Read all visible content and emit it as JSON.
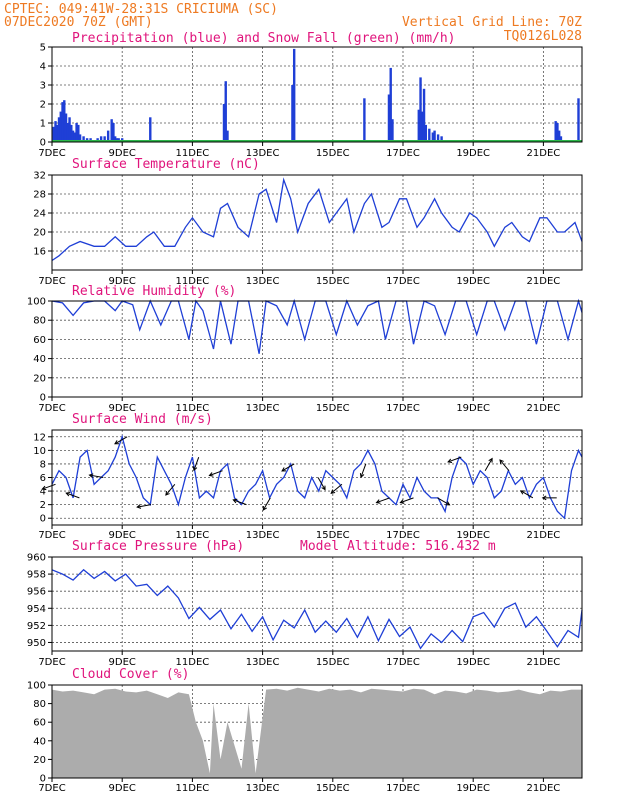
{
  "header": {
    "line1": "CPTEC:   049:41W-28:31S   CRICIUMA (SC)",
    "line2_left": "07DEC2020 70Z (GMT)",
    "line2_right": "Vertical Grid Line: 70Z",
    "line3_right": "TQ0126L028"
  },
  "colors": {
    "header": "#ee7a22",
    "title": "#e0147c",
    "line": "#1f3fd6",
    "snow": "#2cb84a",
    "cloud": "#acacac",
    "arrow": "#000000"
  },
  "chart_data": [
    {
      "type": "bar",
      "title": "Precipitation (blue) and Snow Fall (green) (mm/h)",
      "ylim": [
        0,
        5
      ],
      "yticks": [
        0,
        1,
        2,
        3,
        4,
        5
      ],
      "xticks": [
        "7DEC",
        "9DEC",
        "11DEC",
        "13DEC",
        "15DEC",
        "17DEC",
        "19DEC",
        "21DEC"
      ],
      "xlim_days": [
        7,
        22.1
      ],
      "series": [
        {
          "name": "Precipitation",
          "x": [
            7.05,
            7.1,
            7.15,
            7.2,
            7.25,
            7.3,
            7.35,
            7.4,
            7.45,
            7.5,
            7.55,
            7.6,
            7.65,
            7.7,
            7.75,
            7.8,
            7.9,
            8.0,
            8.1,
            8.2,
            8.3,
            8.4,
            8.5,
            8.6,
            8.7,
            8.75,
            8.8,
            8.85,
            8.9,
            9.0,
            9.8,
            11.9,
            11.95,
            12.0,
            13.85,
            13.9,
            15.9,
            16.6,
            16.65,
            16.7,
            17.45,
            17.5,
            17.55,
            17.6,
            17.65,
            17.75,
            17.85,
            17.9,
            18.0,
            18.1,
            21.35,
            21.4,
            21.45,
            21.5,
            22.0
          ],
          "values": [
            0.8,
            1.1,
            0.9,
            1.3,
            1.6,
            2.1,
            2.2,
            1.5,
            1.0,
            1.3,
            0.9,
            0.6,
            0.5,
            1.0,
            0.9,
            0.4,
            0.3,
            0.2,
            0.2,
            0.1,
            0.2,
            0.3,
            0.3,
            0.6,
            1.2,
            1.0,
            0.3,
            0.2,
            0.2,
            0.2,
            1.3,
            2.0,
            3.2,
            0.6,
            3.0,
            4.9,
            2.3,
            2.5,
            3.9,
            1.2,
            1.7,
            3.4,
            1.6,
            2.8,
            0.9,
            0.7,
            0.5,
            0.6,
            0.4,
            0.3,
            1.1,
            1.0,
            0.6,
            0.3,
            2.3
          ]
        },
        {
          "name": "Snow Fall",
          "x": [
            7.0,
            22.1
          ],
          "values": [
            0,
            0
          ]
        }
      ]
    },
    {
      "type": "line",
      "title": "Surface Temperature (nC)",
      "ylim": [
        12,
        32
      ],
      "yticks": [
        16,
        20,
        24,
        28,
        32
      ],
      "xticks": [
        "7DEC",
        "9DEC",
        "11DEC",
        "13DEC",
        "15DEC",
        "17DEC",
        "19DEC",
        "21DEC"
      ],
      "series": [
        {
          "name": "Temperature",
          "x": [
            7.0,
            7.2,
            7.5,
            7.8,
            8.2,
            8.5,
            8.8,
            9.1,
            9.4,
            9.7,
            9.9,
            10.2,
            10.5,
            10.8,
            11.0,
            11.3,
            11.6,
            11.8,
            12.0,
            12.3,
            12.6,
            12.9,
            13.1,
            13.4,
            13.6,
            13.8,
            14.0,
            14.3,
            14.6,
            14.9,
            15.1,
            15.4,
            15.6,
            15.9,
            16.1,
            16.4,
            16.6,
            16.9,
            17.1,
            17.4,
            17.6,
            17.9,
            18.1,
            18.4,
            18.6,
            18.9,
            19.1,
            19.4,
            19.6,
            19.9,
            20.1,
            20.4,
            20.6,
            20.9,
            21.1,
            21.4,
            21.6,
            21.9,
            22.1
          ],
          "values": [
            14,
            15,
            17,
            18,
            17,
            17,
            19,
            17,
            17,
            19,
            20,
            17,
            17,
            21,
            23,
            20,
            19,
            25,
            26,
            21,
            19,
            28,
            29,
            22,
            31,
            27,
            20,
            26,
            29,
            22,
            24,
            27,
            20,
            26,
            28,
            21,
            22,
            27,
            27,
            21,
            23,
            27,
            24,
            21,
            20,
            24,
            23,
            20,
            17,
            21,
            22,
            19,
            18,
            23,
            23,
            20,
            20,
            22,
            18
          ]
        }
      ]
    },
    {
      "type": "line",
      "title": "Relative Humidity (%)",
      "ylim": [
        0,
        100
      ],
      "yticks": [
        0,
        20,
        40,
        60,
        80,
        100
      ],
      "xticks": [
        "7DEC",
        "9DEC",
        "11DEC",
        "13DEC",
        "15DEC",
        "17DEC",
        "19DEC",
        "21DEC"
      ],
      "series": [
        {
          "name": "Relative Humidity",
          "x": [
            7.0,
            7.3,
            7.6,
            7.9,
            8.2,
            8.5,
            8.8,
            9.0,
            9.3,
            9.5,
            9.8,
            10.1,
            10.4,
            10.6,
            10.9,
            11.1,
            11.3,
            11.6,
            11.8,
            12.1,
            12.3,
            12.6,
            12.9,
            13.1,
            13.4,
            13.7,
            13.9,
            14.2,
            14.5,
            14.8,
            15.1,
            15.4,
            15.7,
            16.0,
            16.3,
            16.5,
            16.8,
            17.1,
            17.3,
            17.6,
            17.9,
            18.2,
            18.5,
            18.8,
            19.1,
            19.4,
            19.6,
            19.9,
            20.2,
            20.5,
            20.8,
            21.1,
            21.4,
            21.7,
            22.0,
            22.1
          ],
          "values": [
            100,
            98,
            85,
            98,
            100,
            100,
            90,
            100,
            96,
            70,
            100,
            75,
            100,
            100,
            60,
            100,
            90,
            50,
            100,
            55,
            100,
            100,
            45,
            100,
            95,
            75,
            100,
            60,
            100,
            100,
            65,
            100,
            75,
            95,
            100,
            60,
            100,
            100,
            55,
            100,
            95,
            65,
            100,
            100,
            65,
            100,
            100,
            70,
            100,
            100,
            55,
            100,
            100,
            60,
            100,
            88
          ]
        }
      ]
    },
    {
      "type": "line",
      "title": "Surface Wind (m/s)",
      "ylim": [
        -1,
        13
      ],
      "yticks": [
        0,
        2,
        4,
        6,
        8,
        10,
        12
      ],
      "xticks": [
        "7DEC",
        "9DEC",
        "11DEC",
        "13DEC",
        "15DEC",
        "17DEC",
        "19DEC",
        "21DEC"
      ],
      "series": [
        {
          "name": "Wind Speed",
          "x": [
            7.0,
            7.2,
            7.4,
            7.6,
            7.8,
            8.0,
            8.2,
            8.4,
            8.6,
            8.8,
            9.0,
            9.2,
            9.4,
            9.6,
            9.8,
            10.0,
            10.2,
            10.4,
            10.6,
            10.8,
            11.0,
            11.2,
            11.4,
            11.6,
            11.8,
            12.0,
            12.2,
            12.4,
            12.6,
            12.8,
            13.0,
            13.2,
            13.4,
            13.6,
            13.8,
            14.0,
            14.2,
            14.4,
            14.6,
            14.8,
            15.0,
            15.2,
            15.4,
            15.6,
            15.8,
            16.0,
            16.2,
            16.4,
            16.6,
            16.8,
            17.0,
            17.2,
            17.4,
            17.6,
            17.8,
            18.0,
            18.2,
            18.4,
            18.6,
            18.8,
            19.0,
            19.2,
            19.4,
            19.6,
            19.8,
            20.0,
            20.2,
            20.4,
            20.6,
            20.8,
            21.0,
            21.2,
            21.4,
            21.6,
            21.8,
            22.0,
            22.1
          ],
          "values": [
            5,
            7,
            6,
            3,
            9,
            10,
            5,
            6,
            7,
            9,
            12,
            8,
            6,
            3,
            2,
            9,
            7,
            5,
            2,
            6,
            9,
            3,
            4,
            3,
            7,
            8,
            3,
            2,
            4,
            5,
            7,
            3,
            5,
            6,
            8,
            4,
            3,
            6,
            4,
            7,
            6,
            5,
            3,
            7,
            8,
            10,
            8,
            4,
            3,
            2,
            5,
            3,
            6,
            4,
            3,
            3,
            1,
            6,
            9,
            8,
            5,
            7,
            6,
            3,
            4,
            7,
            5,
            6,
            3,
            5,
            6,
            3,
            1,
            0,
            7,
            10,
            9
          ]
        }
      ]
    },
    {
      "type": "line",
      "title": "Surface Pressure (hPa)",
      "annotation": "Model Altitude: 516.432 m",
      "ylim": [
        949,
        960
      ],
      "yticks": [
        950,
        952,
        954,
        956,
        958,
        960
      ],
      "xticks": [
        "7DEC",
        "9DEC",
        "11DEC",
        "13DEC",
        "15DEC",
        "17DEC",
        "19DEC",
        "21DEC"
      ],
      "series": [
        {
          "name": "Pressure",
          "x": [
            7.0,
            7.3,
            7.6,
            7.9,
            8.2,
            8.5,
            8.8,
            9.1,
            9.4,
            9.7,
            10.0,
            10.3,
            10.6,
            10.9,
            11.2,
            11.5,
            11.8,
            12.1,
            12.4,
            12.7,
            13.0,
            13.3,
            13.6,
            13.9,
            14.2,
            14.5,
            14.8,
            15.1,
            15.4,
            15.7,
            16.0,
            16.3,
            16.6,
            16.9,
            17.2,
            17.5,
            17.8,
            18.1,
            18.4,
            18.7,
            19.0,
            19.3,
            19.6,
            19.9,
            20.2,
            20.5,
            20.8,
            21.1,
            21.4,
            21.7,
            22.0,
            22.1
          ],
          "values": [
            958.5,
            958.0,
            957.3,
            958.5,
            957.5,
            958.3,
            957.2,
            958.0,
            956.6,
            956.8,
            955.5,
            956.6,
            955.2,
            952.8,
            954.1,
            952.7,
            953.8,
            951.6,
            953.3,
            951.3,
            953.0,
            950.3,
            952.6,
            951.7,
            953.8,
            951.2,
            952.5,
            951.2,
            952.8,
            950.6,
            953.0,
            950.2,
            952.7,
            950.7,
            951.8,
            949.3,
            951.0,
            950.0,
            951.4,
            950.1,
            953.0,
            953.5,
            951.8,
            954.0,
            954.6,
            951.8,
            953.0,
            951.3,
            949.5,
            951.4,
            950.6,
            953.8
          ]
        }
      ]
    },
    {
      "type": "area",
      "title": "Cloud Cover (%)",
      "ylim": [
        0,
        100
      ],
      "yticks": [
        0,
        20,
        40,
        60,
        80,
        100
      ],
      "xticks": [
        "7DEC",
        "9DEC",
        "11DEC",
        "13DEC",
        "15DEC",
        "17DEC",
        "19DEC",
        "21DEC"
      ],
      "series": [
        {
          "name": "Cloud Cover",
          "x": [
            7.0,
            7.3,
            7.6,
            7.9,
            8.2,
            8.5,
            8.8,
            9.1,
            9.4,
            9.7,
            10.0,
            10.3,
            10.6,
            10.9,
            11.1,
            11.3,
            11.5,
            11.6,
            11.8,
            12.0,
            12.2,
            12.4,
            12.6,
            12.8,
            13.1,
            13.4,
            13.7,
            14.0,
            14.3,
            14.6,
            14.9,
            15.2,
            15.5,
            15.8,
            16.1,
            16.4,
            16.7,
            17.0,
            17.3,
            17.6,
            17.9,
            18.2,
            18.5,
            18.8,
            19.1,
            19.4,
            19.7,
            20.0,
            20.3,
            20.6,
            20.9,
            21.2,
            21.5,
            21.8,
            22.1
          ],
          "values": [
            95,
            93,
            94,
            92,
            90,
            95,
            96,
            93,
            92,
            94,
            90,
            86,
            92,
            90,
            60,
            40,
            5,
            80,
            20,
            60,
            35,
            10,
            80,
            5,
            95,
            96,
            94,
            97,
            95,
            93,
            96,
            94,
            95,
            92,
            96,
            95,
            94,
            93,
            96,
            95,
            90,
            94,
            93,
            91,
            95,
            94,
            92,
            93,
            95,
            92,
            90,
            94,
            93,
            95,
            95
          ]
        }
      ]
    }
  ]
}
